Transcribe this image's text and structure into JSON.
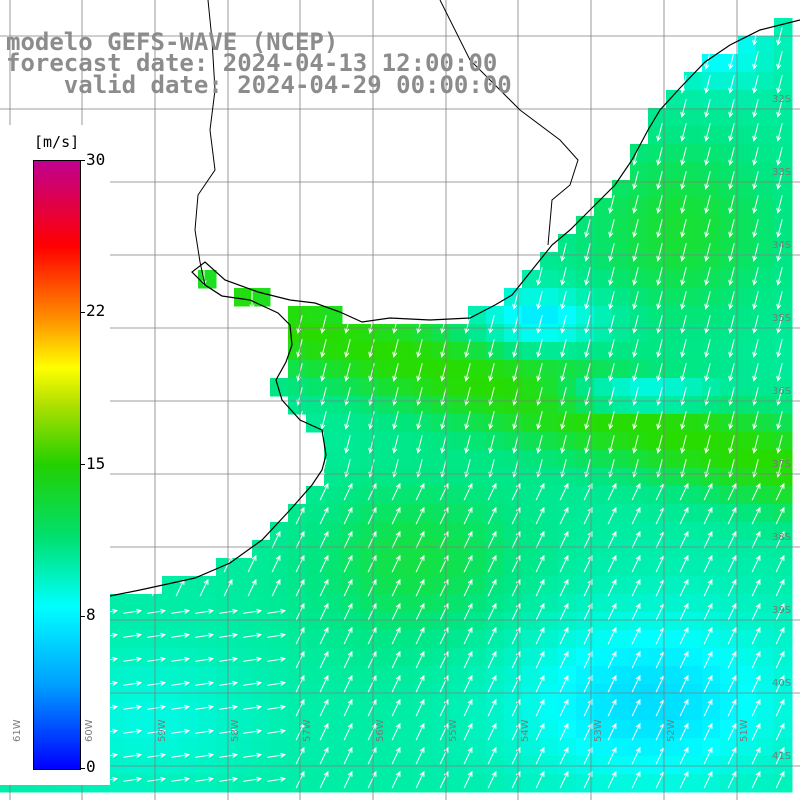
{
  "title": {
    "line1": "modelo GEFS-WAVE (NCEP)",
    "line2": "forecast date: 2024-04-13 12:00:00",
    "line3": "valid date: 2024-04-29 00:00:00"
  },
  "legend": {
    "unit": "[m/s]",
    "ticks": [
      "30",
      "22",
      "15",
      "8",
      "0"
    ]
  },
  "map": {
    "lat_labels": [
      "32S",
      "33S",
      "34S",
      "35S",
      "36S",
      "37S",
      "38S",
      "39S",
      "40S",
      "41S"
    ],
    "lon_labels": [
      "61W",
      "60W",
      "59W",
      "58W",
      "57W",
      "56W",
      "55W",
      "54W",
      "53W",
      "52W",
      "51W"
    ],
    "colors": {
      "land": "#ffffff",
      "coast": "#000000",
      "grid": "#7f7f7f",
      "arrows": "#ffffff"
    }
  }
}
